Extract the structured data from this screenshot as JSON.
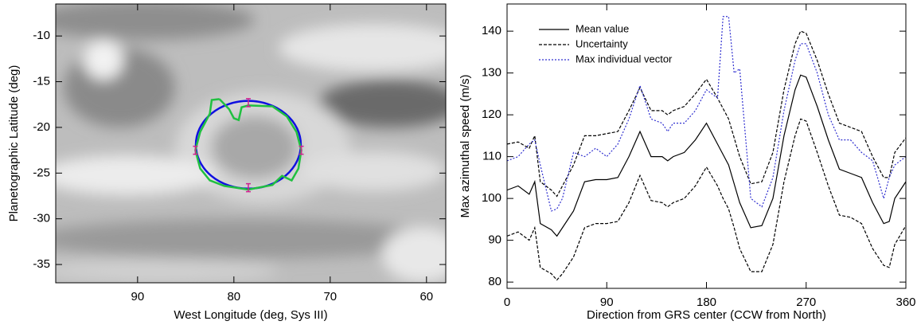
{
  "chart_data": [
    {
      "type": "image",
      "xlabel": "West Longitude (deg, Sys III)",
      "ylabel": "Planetographic Latitude (deg)",
      "xlim": [
        98.5,
        58
      ],
      "xticks": [
        90,
        80,
        70,
        60
      ],
      "ylim": [
        -37,
        -6.5
      ],
      "yticks": [
        -10,
        -15,
        -20,
        -25,
        -30,
        -35
      ],
      "ellipse": {
        "center": [
          78.5,
          -21.9
        ],
        "radii": [
          5.45,
          4.8
        ],
        "color": "#1010e0"
      },
      "contour": {
        "color": "#20c040",
        "x": [
          81.5,
          80.5,
          80,
          79.5,
          79.2,
          78.5,
          76,
          74.5,
          73.5,
          73,
          73.3,
          74,
          75,
          76,
          78.5,
          81,
          82.5,
          83.5,
          84,
          83.5,
          82.5,
          82.3,
          81.5
        ],
        "y": [
          -16.9,
          -18.0,
          -19.0,
          -19.2,
          -17.8,
          -17.6,
          -17.7,
          -18.8,
          -20.5,
          -22.5,
          -24.5,
          -25.8,
          -25.3,
          -26.3,
          -26.8,
          -26.4,
          -25.8,
          -24.5,
          -22.5,
          -20.5,
          -18.5,
          -17.0,
          -16.9
        ]
      },
      "markers": {
        "color": "#d02090",
        "x": [
          78.5,
          84,
          73,
          78.5
        ],
        "y": [
          -17.3,
          -22.5,
          -22.5,
          -26.6
        ]
      }
    },
    {
      "type": "line",
      "xlabel": "Direction from GRS center (CCW from North)",
      "ylabel": "Max azimuthal speed (m/s)",
      "xlim": [
        0,
        360
      ],
      "xticks": [
        0,
        90,
        180,
        270,
        360
      ],
      "ylim": [
        78.5,
        146.5
      ],
      "yticks": [
        80,
        90,
        100,
        110,
        120,
        130,
        140
      ],
      "legend": "upper left",
      "x": [
        0,
        10,
        20,
        25,
        30,
        40,
        45,
        50,
        60,
        70,
        80,
        90,
        100,
        110,
        120,
        130,
        140,
        145,
        150,
        160,
        170,
        180,
        190,
        195,
        200,
        205,
        210,
        220,
        230,
        240,
        250,
        260,
        265,
        270,
        280,
        290,
        300,
        310,
        320,
        330,
        340,
        345,
        350,
        360
      ],
      "series": [
        {
          "name": "Mean value",
          "color": "#000000",
          "style": "solid",
          "values": [
            102,
            103,
            101,
            104,
            94,
            92.5,
            91,
            93,
            97,
            104,
            104.5,
            104.5,
            105,
            110,
            116,
            110,
            110,
            109,
            110,
            111,
            114,
            118,
            113,
            110.5,
            108,
            103.5,
            99,
            93,
            93.5,
            100,
            115,
            126,
            129.5,
            129,
            122,
            114,
            107,
            106,
            105,
            99,
            94,
            94.5,
            100,
            104
          ]
        },
        {
          "name": "Uncertainty",
          "color": "#000000",
          "style": "dashed",
          "values": [
            113,
            113.5,
            112,
            115,
            104,
            102,
            100.5,
            103,
            108,
            115,
            115,
            115.5,
            116,
            121,
            126.5,
            121,
            121,
            120,
            121,
            122,
            125,
            128.5,
            124,
            121.5,
            119,
            114.5,
            110,
            103.5,
            104,
            111,
            126,
            137,
            140,
            139.5,
            133,
            125,
            118,
            117,
            116,
            110,
            105,
            105,
            111,
            114.5
          ],
          "lower_values": [
            91,
            92,
            90,
            93,
            83.5,
            82,
            80.5,
            82,
            86,
            93,
            94,
            94,
            94.5,
            99,
            105.5,
            99.5,
            99,
            98,
            99,
            100,
            103,
            107.5,
            103,
            100,
            97.5,
            93,
            88,
            82.5,
            82.5,
            89,
            104,
            115,
            119,
            118.5,
            111,
            103,
            96,
            95.5,
            94,
            88,
            84,
            83.5,
            89,
            93.5
          ]
        },
        {
          "name": "Max individual vector",
          "color": "#3030d0",
          "style": "dotted",
          "values": [
            109,
            110,
            113,
            114,
            108,
            97,
            97.5,
            100,
            111,
            110,
            112,
            110,
            113,
            119,
            127,
            119,
            118,
            116,
            118,
            118,
            121,
            126,
            124,
            143.5,
            143.5,
            130,
            131,
            100,
            98,
            105,
            121,
            133,
            137,
            137,
            130,
            120,
            114,
            114,
            111,
            109,
            100,
            105,
            108,
            110
          ]
        }
      ]
    }
  ]
}
